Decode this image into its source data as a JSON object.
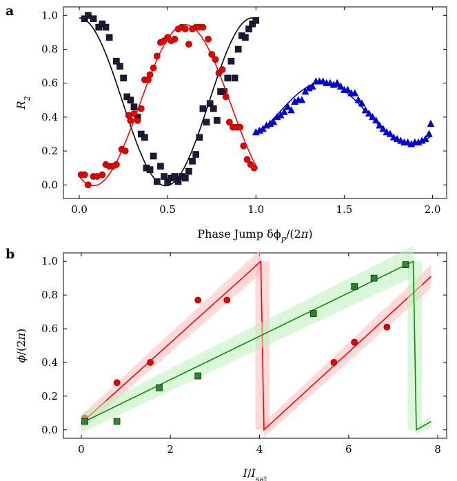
{
  "chart_data": [
    {
      "panel": "a",
      "type": "scatter",
      "xlabel": "Phase Jump δϕ_P/(2π)",
      "ylabel": "R_2",
      "xlim": [
        -0.09,
        2.08
      ],
      "ylim": [
        -0.08,
        1.05
      ],
      "x_ticks": [
        0.0,
        0.5,
        1.0,
        1.5,
        2.0
      ],
      "x_tick_labels": [
        "0.0",
        "0.5",
        "1.0",
        "1.5",
        "2.0"
      ],
      "y_ticks": [
        0.0,
        0.2,
        0.4,
        0.6,
        0.8,
        1.0
      ],
      "y_tick_labels": [
        "0.0",
        "0.2",
        "0.4",
        "0.6",
        "0.8",
        "1.0"
      ],
      "series": [
        {
          "marker": "square",
          "color": "#1a1a3a",
          "fit_color": "#000000",
          "points": [
            [
              0.03,
              0.98
            ],
            [
              0.05,
              1.0
            ],
            [
              0.08,
              0.98
            ],
            [
              0.11,
              0.93
            ],
            [
              0.13,
              0.95
            ],
            [
              0.15,
              0.93
            ],
            [
              0.17,
              0.87
            ],
            [
              0.21,
              0.73
            ],
            [
              0.23,
              0.7
            ],
            [
              0.25,
              0.63
            ],
            [
              0.27,
              0.52
            ],
            [
              0.29,
              0.5
            ],
            [
              0.31,
              0.46
            ],
            [
              0.33,
              0.4
            ],
            [
              0.35,
              0.3
            ],
            [
              0.37,
              0.28
            ],
            [
              0.38,
              0.1
            ],
            [
              0.4,
              0.09
            ],
            [
              0.42,
              0.17
            ],
            [
              0.44,
              0.02
            ],
            [
              0.46,
              0.11
            ],
            [
              0.48,
              0.05
            ],
            [
              0.5,
              0.02
            ],
            [
              0.52,
              0.04
            ],
            [
              0.54,
              0.05
            ],
            [
              0.56,
              0.02
            ],
            [
              0.58,
              0.05
            ],
            [
              0.6,
              0.04
            ],
            [
              0.62,
              0.08
            ],
            [
              0.64,
              0.14
            ],
            [
              0.66,
              0.18
            ],
            [
              0.68,
              0.28
            ],
            [
              0.7,
              0.45
            ],
            [
              0.72,
              0.37
            ],
            [
              0.74,
              0.48
            ],
            [
              0.76,
              0.45
            ],
            [
              0.78,
              0.38
            ],
            [
              0.8,
              0.55
            ],
            [
              0.82,
              0.55
            ],
            [
              0.84,
              0.63
            ],
            [
              0.86,
              0.73
            ],
            [
              0.88,
              0.63
            ],
            [
              0.9,
              0.8
            ],
            [
              0.92,
              0.88
            ],
            [
              0.94,
              0.87
            ],
            [
              0.96,
              0.92
            ],
            [
              0.98,
              0.95
            ],
            [
              1.0,
              0.97
            ]
          ],
          "fit": {
            "mean": 0.5,
            "amp": 0.495,
            "period": 0.93,
            "phase": 0.0,
            "x0": 0.0,
            "x1": 0.93
          }
        },
        {
          "marker": "circle",
          "color": "#e60000",
          "fit_color": "#ff0000",
          "points": [
            [
              0.01,
              0.06
            ],
            [
              0.03,
              0.06
            ],
            [
              0.05,
              0.0
            ],
            [
              0.08,
              0.05
            ],
            [
              0.1,
              0.05
            ],
            [
              0.13,
              0.06
            ],
            [
              0.15,
              0.12
            ],
            [
              0.17,
              0.11
            ],
            [
              0.19,
              0.11
            ],
            [
              0.21,
              0.12
            ],
            [
              0.24,
              0.21
            ],
            [
              0.26,
              0.2
            ],
            [
              0.28,
              0.41
            ],
            [
              0.29,
              0.38
            ],
            [
              0.31,
              0.42
            ],
            [
              0.33,
              0.38
            ],
            [
              0.35,
              0.45
            ],
            [
              0.37,
              0.62
            ],
            [
              0.39,
              0.62
            ],
            [
              0.4,
              0.65
            ],
            [
              0.42,
              0.69
            ],
            [
              0.44,
              0.76
            ],
            [
              0.46,
              0.84
            ],
            [
              0.48,
              0.85
            ],
            [
              0.5,
              0.87
            ],
            [
              0.52,
              0.85
            ],
            [
              0.54,
              0.86
            ],
            [
              0.56,
              0.92
            ],
            [
              0.58,
              0.93
            ],
            [
              0.6,
              0.92
            ],
            [
              0.62,
              0.83
            ],
            [
              0.64,
              0.92
            ],
            [
              0.66,
              0.93
            ],
            [
              0.68,
              0.93
            ],
            [
              0.7,
              0.93
            ],
            [
              0.73,
              0.86
            ],
            [
              0.75,
              0.77
            ],
            [
              0.77,
              0.74
            ],
            [
              0.79,
              0.66
            ],
            [
              0.81,
              0.68
            ],
            [
              0.83,
              0.52
            ],
            [
              0.85,
              0.37
            ],
            [
              0.87,
              0.34
            ],
            [
              0.89,
              0.34
            ],
            [
              0.91,
              0.34
            ],
            [
              0.93,
              0.23
            ],
            [
              0.95,
              0.15
            ],
            [
              0.97,
              0.12
            ],
            [
              0.99,
              0.1
            ]
          ],
          "fit": {
            "mean": 0.465,
            "amp": 0.455,
            "period": 0.99,
            "phase": 0.09,
            "x0": 0.0,
            "x1": 1.0
          }
        },
        {
          "marker": "triangle",
          "color": "#0000e6",
          "fit_color": "#0000cc",
          "points": [
            [
              1.0,
              0.31
            ],
            [
              1.02,
              0.32
            ],
            [
              1.04,
              0.33
            ],
            [
              1.06,
              0.35
            ],
            [
              1.08,
              0.36
            ],
            [
              1.1,
              0.37
            ],
            [
              1.12,
              0.4
            ],
            [
              1.14,
              0.41
            ],
            [
              1.16,
              0.43
            ],
            [
              1.18,
              0.46
            ],
            [
              1.2,
              0.44
            ],
            [
              1.22,
              0.49
            ],
            [
              1.24,
              0.5
            ],
            [
              1.26,
              0.5
            ],
            [
              1.28,
              0.55
            ],
            [
              1.3,
              0.57
            ],
            [
              1.32,
              0.58
            ],
            [
              1.34,
              0.61
            ],
            [
              1.36,
              0.61
            ],
            [
              1.38,
              0.61
            ],
            [
              1.4,
              0.6
            ],
            [
              1.42,
              0.6
            ],
            [
              1.44,
              0.59
            ],
            [
              1.46,
              0.6
            ],
            [
              1.48,
              0.58
            ],
            [
              1.5,
              0.56
            ],
            [
              1.52,
              0.56
            ],
            [
              1.54,
              0.54
            ],
            [
              1.56,
              0.54
            ],
            [
              1.58,
              0.5
            ],
            [
              1.6,
              0.48
            ],
            [
              1.62,
              0.44
            ],
            [
              1.64,
              0.42
            ],
            [
              1.66,
              0.4
            ],
            [
              1.68,
              0.38
            ],
            [
              1.7,
              0.35
            ],
            [
              1.72,
              0.33
            ],
            [
              1.74,
              0.31
            ],
            [
              1.76,
              0.3
            ],
            [
              1.78,
              0.28
            ],
            [
              1.8,
              0.27
            ],
            [
              1.82,
              0.26
            ],
            [
              1.84,
              0.25
            ],
            [
              1.86,
              0.25
            ],
            [
              1.88,
              0.24
            ],
            [
              1.9,
              0.25
            ],
            [
              1.92,
              0.25
            ],
            [
              1.94,
              0.26
            ],
            [
              1.96,
              0.27
            ],
            [
              1.98,
              0.3
            ],
            [
              1.99,
              0.36
            ]
          ],
          "fit": {
            "mean": 0.425,
            "amp": 0.18,
            "period": 1.0,
            "phase": 0.89,
            "x0": 1.0,
            "x1": 1.99
          }
        }
      ]
    },
    {
      "panel": "b",
      "type": "scatter",
      "xlabel": "I/I_sat",
      "ylabel": "ϕ/(2π)",
      "xlim": [
        -0.4,
        8.2
      ],
      "ylim": [
        -0.05,
        1.05
      ],
      "x_ticks": [
        0,
        2,
        4,
        6,
        8
      ],
      "x_tick_labels": [
        "0",
        "2",
        "4",
        "6",
        "8"
      ],
      "y_ticks": [
        0.0,
        0.2,
        0.4,
        0.6,
        0.8,
        1.0
      ],
      "y_tick_labels": [
        "0.0",
        "0.2",
        "0.4",
        "0.6",
        "0.8",
        "1.0"
      ],
      "series": [
        {
          "marker": "circle",
          "color": "#e60000",
          "line_color": "#ff0000",
          "band_color": "#ffbbbb",
          "points": [
            [
              0.08,
              0.07
            ],
            [
              0.8,
              0.28
            ],
            [
              1.55,
              0.4
            ],
            [
              2.62,
              0.77
            ],
            [
              3.27,
              0.77
            ],
            [
              5.67,
              0.4
            ],
            [
              6.13,
              0.52
            ],
            [
              6.86,
              0.61
            ]
          ],
          "fit_segments": [
            [
              0.0,
              0.04,
              4.03,
              1.0
            ],
            [
              4.03,
              1.0,
              4.1,
              0.0
            ],
            [
              4.1,
              0.0,
              7.85,
              0.91
            ]
          ],
          "band_halfwidth": 0.025
        },
        {
          "marker": "square",
          "color": "#2a8a2a",
          "line_color": "#0a8a0a",
          "band_color": "#bbf0bb",
          "points": [
            [
              0.08,
              0.05
            ],
            [
              0.8,
              0.05
            ],
            [
              1.75,
              0.25
            ],
            [
              2.62,
              0.32
            ],
            [
              5.21,
              0.69
            ],
            [
              6.13,
              0.85
            ],
            [
              6.57,
              0.9
            ],
            [
              7.28,
              0.98
            ]
          ],
          "fit_segments": [
            [
              0.0,
              0.04,
              7.45,
              1.0
            ],
            [
              7.45,
              1.0,
              7.52,
              0.0
            ],
            [
              7.52,
              0.0,
              7.85,
              0.05
            ]
          ],
          "band_halfwidth": 0.02
        }
      ]
    }
  ]
}
